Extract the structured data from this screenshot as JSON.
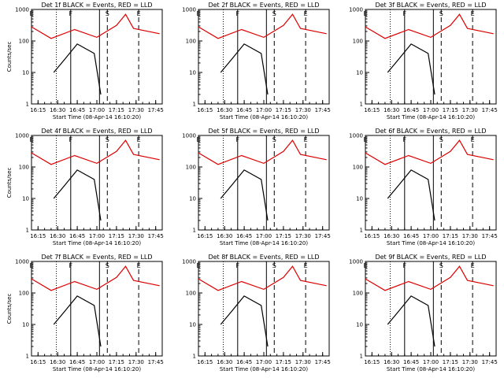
{
  "chart_data": [
    {
      "type": "line",
      "title": "Det 1f BLACK = Events, RED = LLD",
      "xlabel": "Start Time (08-Apr-14 16:10:20)",
      "ylabel": "Counts/sec",
      "y_scale": "log",
      "ylim": [
        1,
        1000
      ],
      "yticks": [
        "1",
        "10",
        "100",
        "1000"
      ],
      "xticks": [
        "16:15",
        "16:30",
        "16:45",
        "17:00",
        "17:15",
        "17:30",
        "17:45"
      ],
      "markers": [
        {
          "label": "E",
          "time": "16:10",
          "style": "dotted"
        },
        {
          "label": "",
          "time": "16:29",
          "style": "dotted"
        },
        {
          "label": "F",
          "time": "16:40",
          "style": "solid"
        },
        {
          "label": "",
          "time": "17:02",
          "style": "solid"
        },
        {
          "label": "S",
          "time": "17:08",
          "style": "dashed"
        },
        {
          "label": "E",
          "time": "17:32",
          "style": "dashed"
        }
      ],
      "series": [
        {
          "name": "BLACK = Events",
          "color": "#000000",
          "times": [
            "16:27",
            "16:35",
            "16:45",
            "16:58",
            "17:03"
          ],
          "values": [
            10,
            25,
            80,
            40,
            2
          ]
        },
        {
          "name": "RED = LLD",
          "color": "#dd0000",
          "times": [
            "16:10",
            "16:25",
            "16:43",
            "17:00",
            "17:15",
            "17:22",
            "17:28",
            "17:48"
          ],
          "values": [
            280,
            120,
            230,
            130,
            310,
            700,
            250,
            170
          ]
        }
      ]
    },
    {
      "type": "line",
      "title": "Det 2f BLACK = Events, RED = LLD",
      "xlabel": "Start Time (08-Apr-14 16:10:20)",
      "ylabel": "",
      "y_scale": "log",
      "ylim": [
        1,
        1000
      ],
      "yticks": [
        "1",
        "10",
        "100",
        "1000"
      ],
      "xticks": [
        "16:15",
        "16:30",
        "16:45",
        "17:00",
        "17:15",
        "17:30",
        "17:45"
      ],
      "markers": [
        {
          "label": "E",
          "time": "16:10",
          "style": "dotted"
        },
        {
          "label": "",
          "time": "16:29",
          "style": "dotted"
        },
        {
          "label": "F",
          "time": "16:40",
          "style": "solid"
        },
        {
          "label": "",
          "time": "17:02",
          "style": "solid"
        },
        {
          "label": "S",
          "time": "17:08",
          "style": "dashed"
        },
        {
          "label": "E",
          "time": "17:32",
          "style": "dashed"
        }
      ],
      "series": [
        {
          "name": "BLACK = Events",
          "color": "#000000",
          "times": [
            "16:27",
            "16:35",
            "16:45",
            "16:58",
            "17:03"
          ],
          "values": [
            10,
            25,
            80,
            40,
            2
          ]
        },
        {
          "name": "RED = LLD",
          "color": "#dd0000",
          "times": [
            "16:10",
            "16:25",
            "16:43",
            "17:00",
            "17:15",
            "17:22",
            "17:28",
            "17:48"
          ],
          "values": [
            280,
            120,
            230,
            130,
            310,
            700,
            250,
            170
          ]
        }
      ]
    },
    {
      "type": "line",
      "title": "Det 3f BLACK = Events, RED = LLD",
      "xlabel": "Start Time (08-Apr-14 16:10:20)",
      "ylabel": "",
      "y_scale": "log",
      "ylim": [
        1,
        1000
      ],
      "yticks": [
        "1",
        "10",
        "100",
        "1000"
      ],
      "xticks": [
        "16:15",
        "16:30",
        "16:45",
        "17:00",
        "17:15",
        "17:30",
        "17:45"
      ],
      "markers": [
        {
          "label": "E",
          "time": "16:10",
          "style": "dotted"
        },
        {
          "label": "",
          "time": "16:29",
          "style": "dotted"
        },
        {
          "label": "F",
          "time": "16:40",
          "style": "solid"
        },
        {
          "label": "",
          "time": "17:02",
          "style": "solid"
        },
        {
          "label": "S",
          "time": "17:08",
          "style": "dashed"
        },
        {
          "label": "E",
          "time": "17:32",
          "style": "dashed"
        }
      ],
      "series": [
        {
          "name": "BLACK = Events",
          "color": "#000000",
          "times": [
            "16:27",
            "16:35",
            "16:45",
            "16:58",
            "17:03"
          ],
          "values": [
            10,
            25,
            80,
            40,
            2
          ]
        },
        {
          "name": "RED = LLD",
          "color": "#dd0000",
          "times": [
            "16:10",
            "16:25",
            "16:43",
            "17:00",
            "17:15",
            "17:22",
            "17:28",
            "17:48"
          ],
          "values": [
            280,
            120,
            230,
            130,
            310,
            700,
            250,
            170
          ]
        }
      ]
    },
    {
      "type": "line",
      "title": "Det 4f BLACK = Events, RED = LLD",
      "xlabel": "Start Time (08-Apr-14 16:10:20)",
      "ylabel": "Counts/sec",
      "y_scale": "log",
      "ylim": [
        1,
        1000
      ],
      "yticks": [
        "1",
        "10",
        "100",
        "1000"
      ],
      "xticks": [
        "16:15",
        "16:30",
        "16:45",
        "17:00",
        "17:15",
        "17:30",
        "17:45"
      ],
      "markers": [
        {
          "label": "E",
          "time": "16:10",
          "style": "dotted"
        },
        {
          "label": "",
          "time": "16:29",
          "style": "dotted"
        },
        {
          "label": "F",
          "time": "16:40",
          "style": "solid"
        },
        {
          "label": "",
          "time": "17:02",
          "style": "solid"
        },
        {
          "label": "S",
          "time": "17:08",
          "style": "dashed"
        },
        {
          "label": "E",
          "time": "17:32",
          "style": "dashed"
        }
      ],
      "series": [
        {
          "name": "BLACK = Events",
          "color": "#000000",
          "times": [
            "16:27",
            "16:35",
            "16:45",
            "16:58",
            "17:03"
          ],
          "values": [
            10,
            25,
            80,
            40,
            2
          ]
        },
        {
          "name": "RED = LLD",
          "color": "#dd0000",
          "times": [
            "16:10",
            "16:25",
            "16:43",
            "17:00",
            "17:15",
            "17:22",
            "17:28",
            "17:48"
          ],
          "values": [
            280,
            120,
            230,
            130,
            310,
            700,
            250,
            170
          ]
        }
      ]
    },
    {
      "type": "line",
      "title": "Det 5f BLACK = Events, RED = LLD",
      "xlabel": "Start Time (08-Apr-14 16:10:20)",
      "ylabel": "",
      "y_scale": "log",
      "ylim": [
        1,
        1000
      ],
      "yticks": [
        "1",
        "10",
        "100",
        "1000"
      ],
      "xticks": [
        "16:15",
        "16:30",
        "16:45",
        "17:00",
        "17:15",
        "17:30",
        "17:45"
      ],
      "markers": [
        {
          "label": "E",
          "time": "16:10",
          "style": "dotted"
        },
        {
          "label": "",
          "time": "16:29",
          "style": "dotted"
        },
        {
          "label": "F",
          "time": "16:40",
          "style": "solid"
        },
        {
          "label": "",
          "time": "17:02",
          "style": "solid"
        },
        {
          "label": "S",
          "time": "17:08",
          "style": "dashed"
        },
        {
          "label": "E",
          "time": "17:32",
          "style": "dashed"
        }
      ],
      "series": [
        {
          "name": "BLACK = Events",
          "color": "#000000",
          "times": [
            "16:27",
            "16:35",
            "16:45",
            "16:58",
            "17:03"
          ],
          "values": [
            10,
            25,
            80,
            40,
            2
          ]
        },
        {
          "name": "RED = LLD",
          "color": "#dd0000",
          "times": [
            "16:10",
            "16:25",
            "16:43",
            "17:00",
            "17:15",
            "17:22",
            "17:28",
            "17:48"
          ],
          "values": [
            280,
            120,
            230,
            130,
            310,
            700,
            250,
            170
          ]
        }
      ]
    },
    {
      "type": "line",
      "title": "Det 6f BLACK = Events, RED = LLD",
      "xlabel": "Start Time (08-Apr-14 16:10:20)",
      "ylabel": "",
      "y_scale": "log",
      "ylim": [
        1,
        1000
      ],
      "yticks": [
        "1",
        "10",
        "100",
        "1000"
      ],
      "xticks": [
        "16:15",
        "16:30",
        "16:45",
        "17:00",
        "17:15",
        "17:30",
        "17:45"
      ],
      "markers": [
        {
          "label": "E",
          "time": "16:10",
          "style": "dotted"
        },
        {
          "label": "",
          "time": "16:29",
          "style": "dotted"
        },
        {
          "label": "F",
          "time": "16:40",
          "style": "solid"
        },
        {
          "label": "",
          "time": "17:02",
          "style": "solid"
        },
        {
          "label": "S",
          "time": "17:08",
          "style": "dashed"
        },
        {
          "label": "E",
          "time": "17:32",
          "style": "dashed"
        }
      ],
      "series": [
        {
          "name": "BLACK = Events",
          "color": "#000000",
          "times": [
            "16:27",
            "16:35",
            "16:45",
            "16:58",
            "17:03"
          ],
          "values": [
            10,
            25,
            80,
            40,
            2
          ]
        },
        {
          "name": "RED = LLD",
          "color": "#dd0000",
          "times": [
            "16:10",
            "16:25",
            "16:43",
            "17:00",
            "17:15",
            "17:22",
            "17:28",
            "17:48"
          ],
          "values": [
            280,
            120,
            230,
            130,
            310,
            700,
            250,
            170
          ]
        }
      ]
    },
    {
      "type": "line",
      "title": "Det 7f BLACK = Events, RED = LLD",
      "xlabel": "Start Time (08-Apr-14 16:10:20)",
      "ylabel": "Counts/sec",
      "y_scale": "log",
      "ylim": [
        1,
        1000
      ],
      "yticks": [
        "1",
        "10",
        "100",
        "1000"
      ],
      "xticks": [
        "16:15",
        "16:30",
        "16:45",
        "17:00",
        "17:15",
        "17:30",
        "17:45"
      ],
      "markers": [
        {
          "label": "E",
          "time": "16:10",
          "style": "dotted"
        },
        {
          "label": "",
          "time": "16:29",
          "style": "dotted"
        },
        {
          "label": "F",
          "time": "16:40",
          "style": "solid"
        },
        {
          "label": "",
          "time": "17:02",
          "style": "solid"
        },
        {
          "label": "S",
          "time": "17:08",
          "style": "dashed"
        },
        {
          "label": "E",
          "time": "17:32",
          "style": "dashed"
        }
      ],
      "series": [
        {
          "name": "BLACK = Events",
          "color": "#000000",
          "times": [
            "16:27",
            "16:35",
            "16:45",
            "16:58",
            "17:03"
          ],
          "values": [
            10,
            25,
            80,
            40,
            2
          ]
        },
        {
          "name": "RED = LLD",
          "color": "#dd0000",
          "times": [
            "16:10",
            "16:25",
            "16:43",
            "17:00",
            "17:15",
            "17:22",
            "17:28",
            "17:48"
          ],
          "values": [
            280,
            120,
            230,
            130,
            310,
            700,
            250,
            170
          ]
        }
      ]
    },
    {
      "type": "line",
      "title": "Det 8f BLACK = Events, RED = LLD",
      "xlabel": "Start Time (08-Apr-14 16:10:20)",
      "ylabel": "",
      "y_scale": "log",
      "ylim": [
        1,
        1000
      ],
      "yticks": [
        "1",
        "10",
        "100",
        "1000"
      ],
      "xticks": [
        "16:15",
        "16:30",
        "16:45",
        "17:00",
        "17:15",
        "17:30",
        "17:45"
      ],
      "markers": [
        {
          "label": "E",
          "time": "16:10",
          "style": "dotted"
        },
        {
          "label": "",
          "time": "16:29",
          "style": "dotted"
        },
        {
          "label": "F",
          "time": "16:40",
          "style": "solid"
        },
        {
          "label": "",
          "time": "17:02",
          "style": "solid"
        },
        {
          "label": "S",
          "time": "17:08",
          "style": "dashed"
        },
        {
          "label": "E",
          "time": "17:32",
          "style": "dashed"
        }
      ],
      "series": [
        {
          "name": "BLACK = Events",
          "color": "#000000",
          "times": [
            "16:27",
            "16:35",
            "16:45",
            "16:58",
            "17:03"
          ],
          "values": [
            10,
            25,
            80,
            40,
            2
          ]
        },
        {
          "name": "RED = LLD",
          "color": "#dd0000",
          "times": [
            "16:10",
            "16:25",
            "16:43",
            "17:00",
            "17:15",
            "17:22",
            "17:28",
            "17:48"
          ],
          "values": [
            280,
            120,
            230,
            130,
            310,
            700,
            250,
            170
          ]
        }
      ]
    },
    {
      "type": "line",
      "title": "Det 9f BLACK = Events, RED = LLD",
      "xlabel": "Start Time (08-Apr-14 16:10:20)",
      "ylabel": "",
      "y_scale": "log",
      "ylim": [
        1,
        1000
      ],
      "yticks": [
        "1",
        "10",
        "100",
        "1000"
      ],
      "xticks": [
        "16:15",
        "16:30",
        "16:45",
        "17:00",
        "17:15",
        "17:30",
        "17:45"
      ],
      "markers": [
        {
          "label": "E",
          "time": "16:10",
          "style": "dotted"
        },
        {
          "label": "",
          "time": "16:29",
          "style": "dotted"
        },
        {
          "label": "F",
          "time": "16:40",
          "style": "solid"
        },
        {
          "label": "",
          "time": "17:02",
          "style": "solid"
        },
        {
          "label": "S",
          "time": "17:08",
          "style": "dashed"
        },
        {
          "label": "E",
          "time": "17:32",
          "style": "dashed"
        }
      ],
      "series": [
        {
          "name": "BLACK = Events",
          "color": "#000000",
          "times": [
            "16:27",
            "16:35",
            "16:45",
            "16:58",
            "17:03"
          ],
          "values": [
            10,
            25,
            80,
            40,
            2
          ]
        },
        {
          "name": "RED = LLD",
          "color": "#dd0000",
          "times": [
            "16:10",
            "16:25",
            "16:43",
            "17:00",
            "17:15",
            "17:22",
            "17:28",
            "17:48"
          ],
          "values": [
            280,
            120,
            230,
            130,
            310,
            700,
            250,
            170
          ]
        }
      ]
    }
  ]
}
